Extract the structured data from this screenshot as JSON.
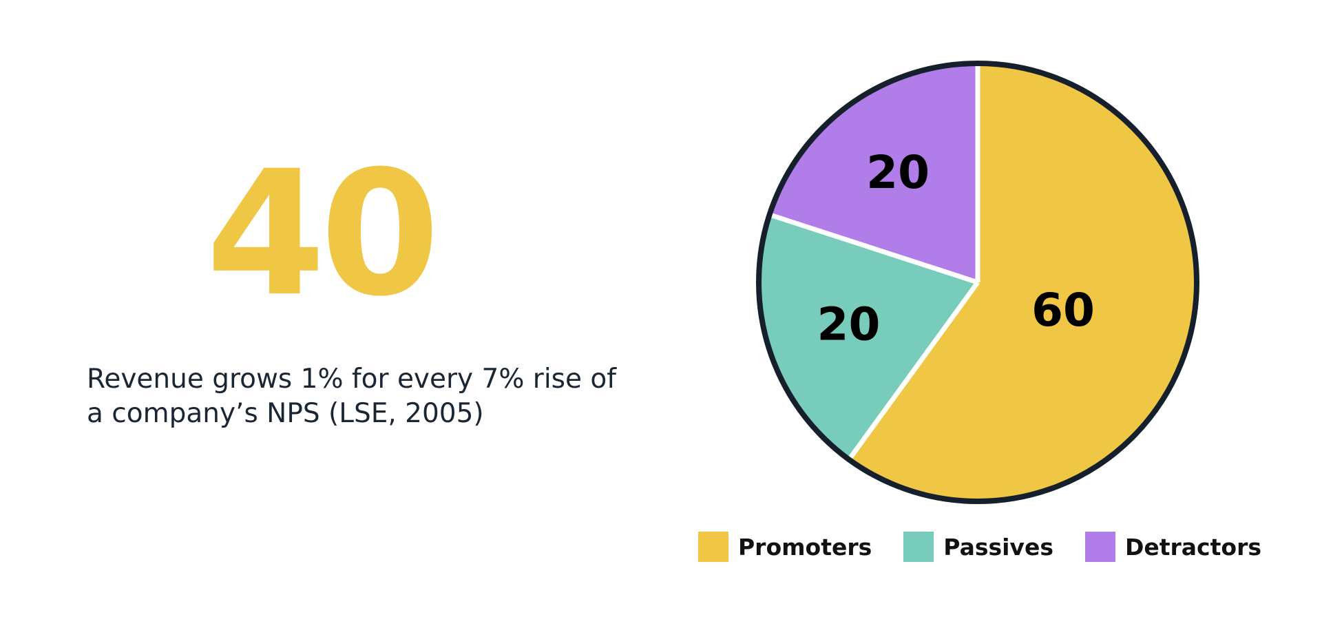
{
  "headline": {
    "value": "40",
    "color": "#f0c744",
    "caption_line1": "Revenue grows 1% for every 7% rise of",
    "caption_line2": "a company’s NPS (LSE, 2005)"
  },
  "chart_data": {
    "type": "pie",
    "title": "",
    "categories": [
      "Promoters",
      "Passives",
      "Detractors"
    ],
    "values": [
      60,
      20,
      20
    ],
    "labels": [
      "60",
      "20",
      "20"
    ],
    "colors": [
      "#f0c744",
      "#77ccbb",
      "#b07de9"
    ],
    "outline_color": "#16202c",
    "separator_color": "#ffffff",
    "start": "12 o'clock",
    "direction": "clockwise",
    "legend_position": "bottom"
  },
  "legend": {
    "items": [
      {
        "label": "Promoters",
        "color": "#f0c744"
      },
      {
        "label": "Passives",
        "color": "#77ccbb"
      },
      {
        "label": "Detractors",
        "color": "#b07de9"
      }
    ]
  }
}
